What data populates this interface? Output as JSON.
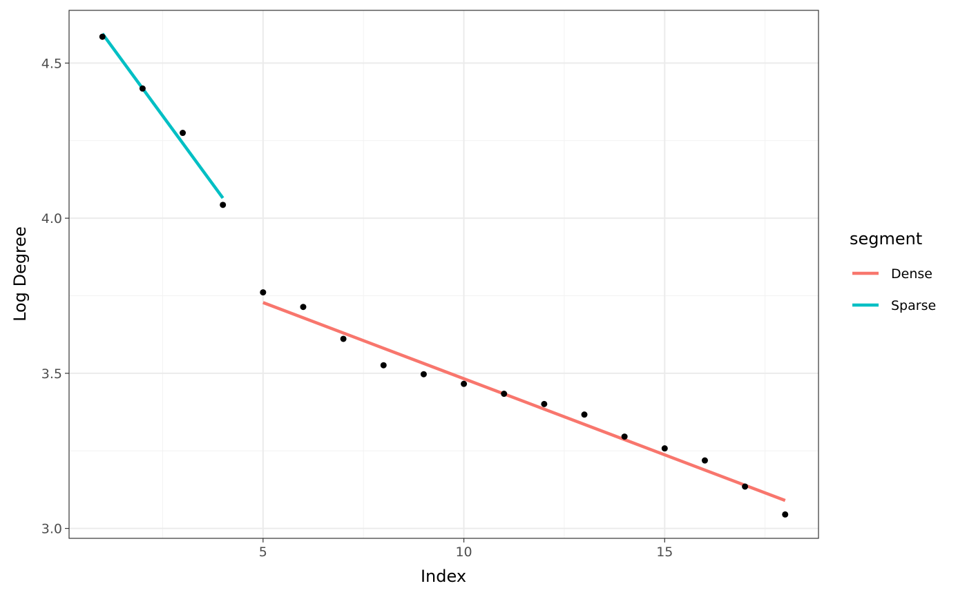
{
  "chart_data": {
    "type": "scatter",
    "xlabel": "Index",
    "ylabel": "Log Degree",
    "xlim": [
      0.17,
      18.83
    ],
    "ylim": [
      2.968,
      4.67
    ],
    "x_ticks": [
      5,
      10,
      15
    ],
    "x_minor_ticks": [
      2.5,
      7.5,
      12.5,
      17.5
    ],
    "y_ticks": [
      3.0,
      3.5,
      4.0,
      4.5
    ],
    "y_tick_labels": [
      "3.0",
      "3.5",
      "4.0",
      "4.5"
    ],
    "y_minor_ticks": [
      3.25,
      3.75,
      4.25
    ],
    "grid": true,
    "theme": "bw",
    "points": {
      "x": [
        1,
        2,
        3,
        4,
        5,
        6,
        7,
        8,
        9,
        10,
        11,
        12,
        13,
        14,
        15,
        16,
        17,
        18
      ],
      "y": [
        4.585,
        4.418,
        4.275,
        4.043,
        3.761,
        3.714,
        3.611,
        3.526,
        3.497,
        3.466,
        3.434,
        3.401,
        3.367,
        3.296,
        3.258,
        3.219,
        3.135,
        3.045
      ],
      "color": "#000000"
    },
    "legend": {
      "title": "segment",
      "position": "right"
    },
    "series": [
      {
        "name": "Dense",
        "color": "#F8766D",
        "x": [
          5,
          18
        ],
        "y": [
          3.728,
          3.09
        ]
      },
      {
        "name": "Sparse",
        "color": "#00BFC4",
        "x": [
          1,
          4
        ],
        "y": [
          4.595,
          4.065
        ]
      }
    ]
  }
}
